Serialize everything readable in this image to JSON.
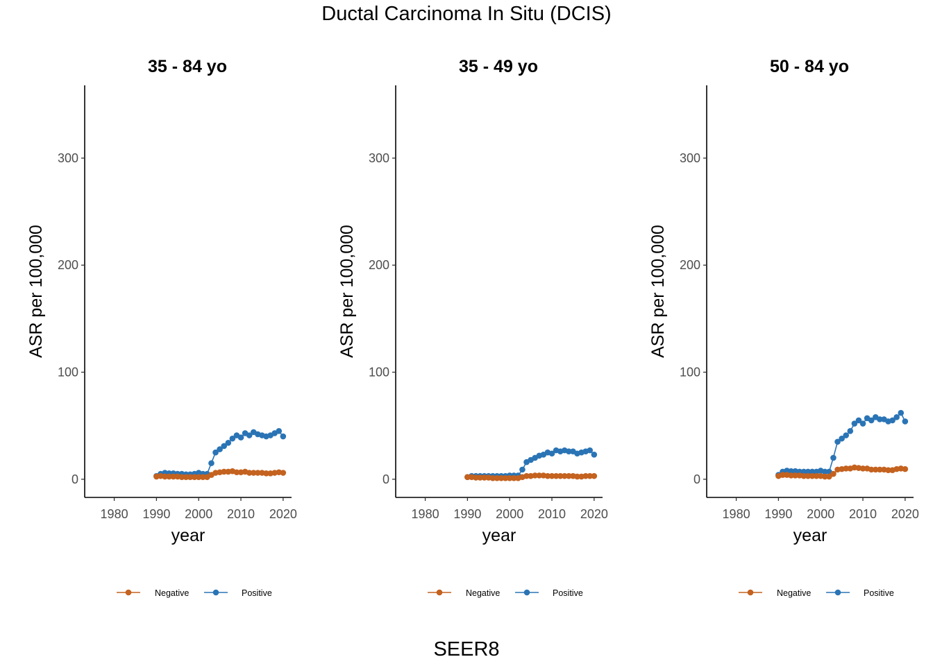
{
  "title": "Ductal Carcinoma In Situ (DCIS)",
  "footer": "SEER8",
  "colors": {
    "negative": "#C4621F",
    "positive": "#2A74B5"
  },
  "chart_data": [
    {
      "type": "line",
      "title": "35 - 84 yo",
      "xlabel": "year",
      "ylabel": "ASR per 100,000",
      "xlim": [
        1973,
        2022
      ],
      "ylim": [
        -17,
        368
      ],
      "xticks": [
        1980,
        1990,
        2000,
        2010,
        2020
      ],
      "yticks": [
        0,
        100,
        200,
        300
      ],
      "grid": false,
      "legend": "bottom",
      "series": [
        {
          "name": "Negative",
          "x": [
            1990,
            1991,
            1992,
            1993,
            1994,
            1995,
            1996,
            1997,
            1998,
            1999,
            2000,
            2001,
            2002,
            2003,
            2004,
            2005,
            2006,
            2007,
            2008,
            2009,
            2010,
            2011,
            2012,
            2013,
            2014,
            2015,
            2016,
            2017,
            2018,
            2019,
            2020
          ],
          "y": [
            2.5,
            3,
            2.5,
            2.5,
            2.5,
            2.5,
            2,
            2,
            2,
            2,
            2,
            2,
            2,
            4,
            6,
            6.5,
            7,
            7,
            7.5,
            6.5,
            6.5,
            7,
            6,
            6,
            6,
            6,
            5.5,
            5.5,
            6,
            6.5,
            6
          ]
        },
        {
          "name": "Positive",
          "x": [
            1990,
            1991,
            1992,
            1993,
            1994,
            1995,
            1996,
            1997,
            1998,
            1999,
            2000,
            2001,
            2002,
            2003,
            2004,
            2005,
            2006,
            2007,
            2008,
            2009,
            2010,
            2011,
            2012,
            2013,
            2014,
            2015,
            2016,
            2017,
            2018,
            2019,
            2020
          ],
          "y": [
            3,
            5,
            6,
            5.5,
            5.5,
            5,
            5,
            4.5,
            4.5,
            5,
            6,
            5,
            5,
            15,
            25,
            28,
            31,
            34,
            38,
            41,
            39,
            43,
            41,
            44,
            42,
            41,
            40,
            41,
            43,
            45,
            40
          ]
        }
      ]
    },
    {
      "type": "line",
      "title": "35 - 49 yo",
      "xlabel": "year",
      "ylabel": "ASR per 100,000",
      "xlim": [
        1973,
        2022
      ],
      "ylim": [
        -17,
        368
      ],
      "xticks": [
        1980,
        1990,
        2000,
        2010,
        2020
      ],
      "yticks": [
        0,
        100,
        200,
        300
      ],
      "grid": false,
      "legend": "bottom",
      "series": [
        {
          "name": "Negative",
          "x": [
            1990,
            1991,
            1992,
            1993,
            1994,
            1995,
            1996,
            1997,
            1998,
            1999,
            2000,
            2001,
            2002,
            2003,
            2004,
            2005,
            2006,
            2007,
            2008,
            2009,
            2010,
            2011,
            2012,
            2013,
            2014,
            2015,
            2016,
            2017,
            2018,
            2019,
            2020
          ],
          "y": [
            2,
            2,
            1.5,
            1.5,
            1.5,
            1.5,
            1,
            1,
            1,
            1,
            1,
            1,
            1,
            2,
            3,
            3,
            3.5,
            3.5,
            3.5,
            3,
            3,
            3,
            3,
            3,
            3,
            3,
            2.5,
            2.5,
            3,
            3,
            3
          ]
        },
        {
          "name": "Positive",
          "x": [
            1990,
            1991,
            1992,
            1993,
            1994,
            1995,
            1996,
            1997,
            1998,
            1999,
            2000,
            2001,
            2002,
            2003,
            2004,
            2005,
            2006,
            2007,
            2008,
            2009,
            2010,
            2011,
            2012,
            2013,
            2014,
            2015,
            2016,
            2017,
            2018,
            2019,
            2020
          ],
          "y": [
            2,
            3,
            3,
            3,
            3,
            3,
            3,
            3,
            3,
            3,
            3.5,
            3.5,
            3.5,
            9,
            16,
            18,
            20,
            22,
            23,
            25,
            24,
            27,
            26,
            27,
            26,
            26,
            24,
            25,
            26,
            27,
            23
          ]
        }
      ]
    },
    {
      "type": "line",
      "title": "50 - 84 yo",
      "xlabel": "year",
      "ylabel": "ASR per 100,000",
      "xlim": [
        1973,
        2022
      ],
      "ylim": [
        -17,
        368
      ],
      "xticks": [
        1980,
        1990,
        2000,
        2010,
        2020
      ],
      "yticks": [
        0,
        100,
        200,
        300
      ],
      "grid": false,
      "legend": "bottom",
      "series": [
        {
          "name": "Negative",
          "x": [
            1990,
            1991,
            1992,
            1993,
            1994,
            1995,
            1996,
            1997,
            1998,
            1999,
            2000,
            2001,
            2002,
            2003,
            2004,
            2005,
            2006,
            2007,
            2008,
            2009,
            2010,
            2011,
            2012,
            2013,
            2014,
            2015,
            2016,
            2017,
            2018,
            2019,
            2020
          ],
          "y": [
            3,
            4,
            4,
            3.5,
            3.5,
            3.5,
            3,
            3,
            3,
            3,
            3,
            2.5,
            2.5,
            5,
            9,
            9.5,
            10,
            10,
            11,
            10.5,
            10,
            10,
            9,
            9,
            9,
            9,
            8.5,
            8.5,
            9.5,
            10,
            9.5
          ]
        },
        {
          "name": "Positive",
          "x": [
            1990,
            1991,
            1992,
            1993,
            1994,
            1995,
            1996,
            1997,
            1998,
            1999,
            2000,
            2001,
            2002,
            2003,
            2004,
            2005,
            2006,
            2007,
            2008,
            2009,
            2010,
            2011,
            2012,
            2013,
            2014,
            2015,
            2016,
            2017,
            2018,
            2019,
            2020
          ],
          "y": [
            4,
            7,
            8,
            7.5,
            7.5,
            7,
            7,
            7,
            7,
            7,
            8,
            7,
            7,
            20,
            35,
            38,
            41,
            45,
            52,
            55,
            52,
            57,
            55,
            58,
            56,
            56,
            54,
            55,
            58,
            62,
            54
          ]
        }
      ]
    }
  ]
}
